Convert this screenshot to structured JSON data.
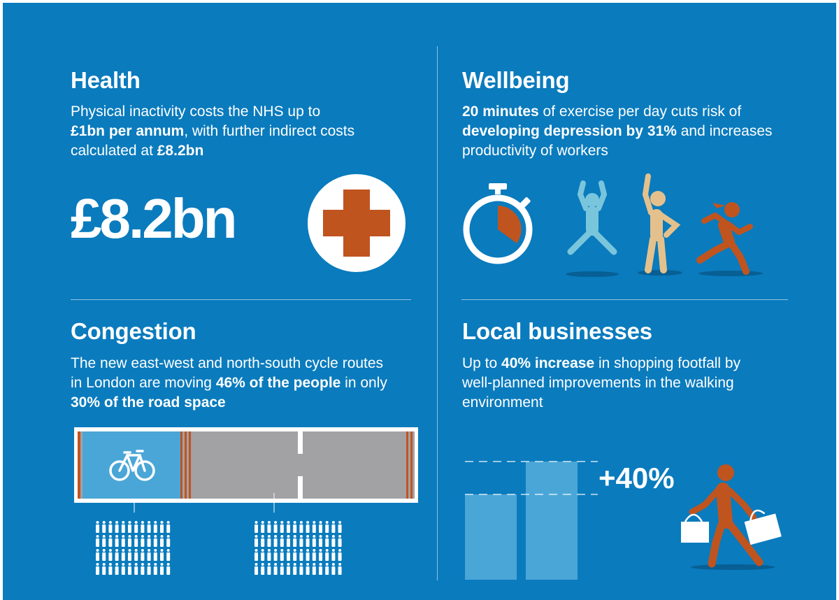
{
  "health": {
    "title": "Health",
    "text_1": "Physical inactivity costs the NHS up to",
    "bold_1": "£1bn per annum",
    "text_2": ", with further indirect costs calculated at ",
    "bold_2": "£8.2bn",
    "big_value": "£8.2bn",
    "icon": "red-cross-icon"
  },
  "wellbeing": {
    "title": "Wellbeing",
    "bold_1": "20 minutes",
    "text_1": " of exercise per day cuts risk of ",
    "bold_2": "developing depression by 31%",
    "text_2": " and increases productivity of workers",
    "icons": [
      "stopwatch-icon",
      "jumping-person-icon",
      "stretching-person-icon",
      "running-person-icon"
    ]
  },
  "congestion": {
    "title": "Congestion",
    "text_1": "The new east-west and north-south cycle routes in London are moving ",
    "bold_1": "46% of the people",
    "text_2": " in only ",
    "bold_2": "30% of the road space",
    "icons": [
      "road-diagram",
      "bicycle-icon",
      "people-group-icon"
    ]
  },
  "local_businesses": {
    "title": "Local businesses",
    "text_1": "Up to ",
    "bold_1": "40% increase",
    "text_2": " in shopping footfall by well-planned improvements in the walking environment",
    "big_value": "+40%",
    "icon": "shopper-icon"
  },
  "colors": {
    "background": "#0a7bbd",
    "accent_orange": "#c0541f",
    "light_blue": "#79c6dc",
    "tan": "#e4c18c",
    "road_grey": "#a2a1a4"
  }
}
